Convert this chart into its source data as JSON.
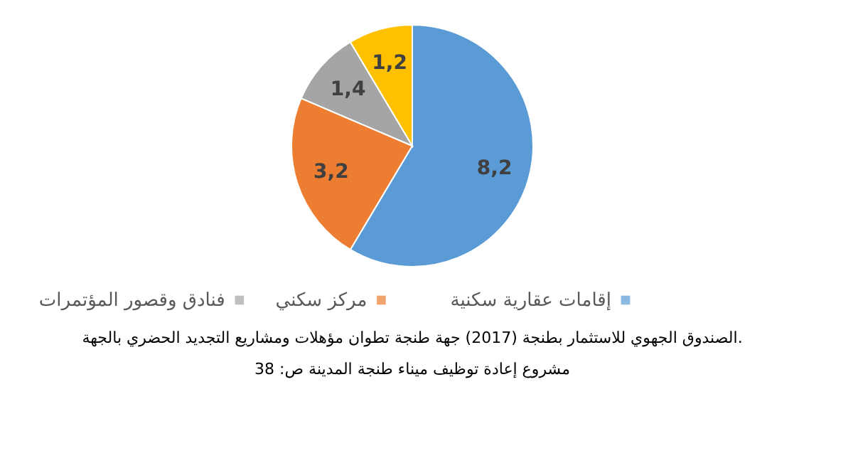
{
  "chart_data": {
    "type": "pie",
    "categories": [
      "إقامات عقارية سكنية",
      "مركز سكني",
      "فنادق وقصور المؤتمرات",
      null
    ],
    "values": [
      8.2,
      3.2,
      1.4,
      1.2
    ],
    "value_labels": [
      "8,2",
      "3,2",
      "1,4",
      "1,2"
    ],
    "colors": [
      "#5b9bd5",
      "#ed7d31",
      "#a5a5a5",
      "#ffc000"
    ],
    "legend": "bottom",
    "annotations": [
      "الصندوق الجهوي للاستثمار بطنجة (2017) جهة طنجة تطوان مؤهلات ومشاريع التجديد الحضري بالجهة.",
      "مشروع إعادة توظيف ميناء طنجة المدينة ص: 38"
    ]
  }
}
